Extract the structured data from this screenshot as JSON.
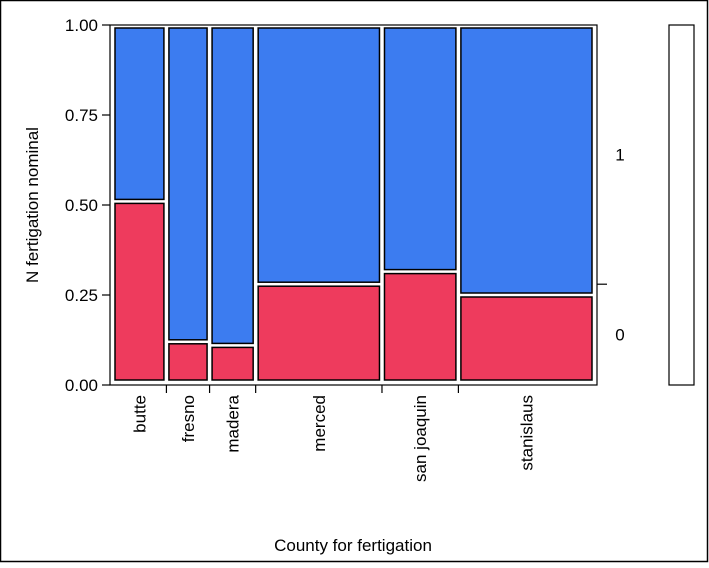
{
  "chart_data": {
    "type": "mosaic",
    "xlabel": "County for fertigation",
    "ylabel": "N fertigation nominal",
    "ylim": [
      0,
      1
    ],
    "yticks": [
      "0.00",
      "0.25",
      "0.50",
      "0.75",
      "1.00"
    ],
    "ytick_values": [
      0,
      0.25,
      0.5,
      0.75,
      1
    ],
    "categories": [
      "butte",
      "fresno",
      "madera",
      "merced",
      "san joaquin",
      "stanislaus"
    ],
    "category_weights": [
      0.1,
      0.078,
      0.084,
      0.248,
      0.146,
      0.268
    ],
    "series": [
      {
        "name": "0",
        "values": [
          0.51,
          0.12,
          0.11,
          0.28,
          0.315,
          0.25
        ]
      },
      {
        "name": "1",
        "values": [
          0.49,
          0.88,
          0.89,
          0.72,
          0.685,
          0.75
        ]
      }
    ],
    "overall_proportion_0": 0.28,
    "colors": {
      "0": "#ee3b5d",
      "1": "#3c7cf0"
    },
    "grid": false
  }
}
